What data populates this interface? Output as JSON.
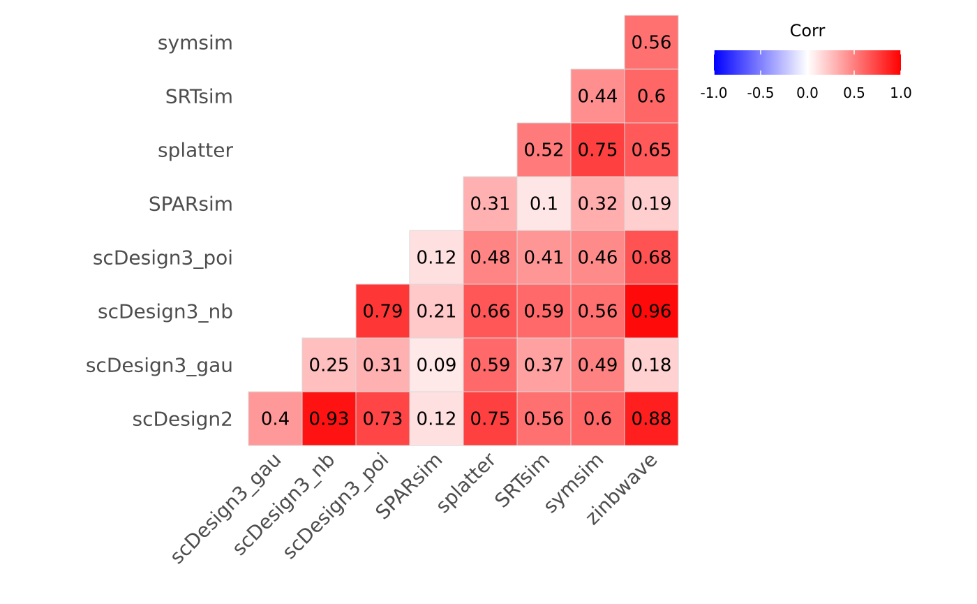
{
  "chart_data": {
    "type": "heatmap",
    "title": "",
    "xlabel": "",
    "ylabel": "",
    "columns": [
      "scDesign3_gau",
      "scDesign3_nb",
      "scDesign3_poi",
      "SPARsim",
      "splatter",
      "SRTsim",
      "symsim",
      "zinbwave"
    ],
    "rows": [
      "scDesign2",
      "scDesign3_gau",
      "scDesign3_nb",
      "scDesign3_poi",
      "SPARsim",
      "splatter",
      "SRTsim",
      "symsim"
    ],
    "cells": [
      {
        "row": "scDesign2",
        "col": "scDesign3_gau",
        "value": 0.4
      },
      {
        "row": "scDesign2",
        "col": "scDesign3_nb",
        "value": 0.93
      },
      {
        "row": "scDesign2",
        "col": "scDesign3_poi",
        "value": 0.73
      },
      {
        "row": "scDesign2",
        "col": "SPARsim",
        "value": 0.12
      },
      {
        "row": "scDesign2",
        "col": "splatter",
        "value": 0.75
      },
      {
        "row": "scDesign2",
        "col": "SRTsim",
        "value": 0.56
      },
      {
        "row": "scDesign2",
        "col": "symsim",
        "value": 0.6
      },
      {
        "row": "scDesign2",
        "col": "zinbwave",
        "value": 0.88
      },
      {
        "row": "scDesign3_gau",
        "col": "scDesign3_nb",
        "value": 0.25
      },
      {
        "row": "scDesign3_gau",
        "col": "scDesign3_poi",
        "value": 0.31
      },
      {
        "row": "scDesign3_gau",
        "col": "SPARsim",
        "value": 0.09
      },
      {
        "row": "scDesign3_gau",
        "col": "splatter",
        "value": 0.59
      },
      {
        "row": "scDesign3_gau",
        "col": "SRTsim",
        "value": 0.37
      },
      {
        "row": "scDesign3_gau",
        "col": "symsim",
        "value": 0.49
      },
      {
        "row": "scDesign3_gau",
        "col": "zinbwave",
        "value": 0.18
      },
      {
        "row": "scDesign3_nb",
        "col": "scDesign3_poi",
        "value": 0.79
      },
      {
        "row": "scDesign3_nb",
        "col": "SPARsim",
        "value": 0.21
      },
      {
        "row": "scDesign3_nb",
        "col": "splatter",
        "value": 0.66
      },
      {
        "row": "scDesign3_nb",
        "col": "SRTsim",
        "value": 0.59
      },
      {
        "row": "scDesign3_nb",
        "col": "symsim",
        "value": 0.56
      },
      {
        "row": "scDesign3_nb",
        "col": "zinbwave",
        "value": 0.96
      },
      {
        "row": "scDesign3_poi",
        "col": "SPARsim",
        "value": 0.12
      },
      {
        "row": "scDesign3_poi",
        "col": "splatter",
        "value": 0.48
      },
      {
        "row": "scDesign3_poi",
        "col": "SRTsim",
        "value": 0.41
      },
      {
        "row": "scDesign3_poi",
        "col": "symsim",
        "value": 0.46
      },
      {
        "row": "scDesign3_poi",
        "col": "zinbwave",
        "value": 0.68
      },
      {
        "row": "SPARsim",
        "col": "splatter",
        "value": 0.31
      },
      {
        "row": "SPARsim",
        "col": "SRTsim",
        "value": 0.1
      },
      {
        "row": "SPARsim",
        "col": "symsim",
        "value": 0.32
      },
      {
        "row": "SPARsim",
        "col": "zinbwave",
        "value": 0.19
      },
      {
        "row": "splatter",
        "col": "SRTsim",
        "value": 0.52
      },
      {
        "row": "splatter",
        "col": "symsim",
        "value": 0.75
      },
      {
        "row": "splatter",
        "col": "zinbwave",
        "value": 0.65
      },
      {
        "row": "SRTsim",
        "col": "symsim",
        "value": 0.44
      },
      {
        "row": "SRTsim",
        "col": "zinbwave",
        "value": 0.6
      },
      {
        "row": "symsim",
        "col": "zinbwave",
        "value": 0.56
      }
    ],
    "legend": {
      "title": "Corr",
      "ticks": [
        "-1.0",
        "-0.5",
        "0.0",
        "0.5",
        "1.0"
      ],
      "range": [
        -1,
        1
      ],
      "placement": "top-right",
      "low_color": "#0000ff",
      "mid_color": "#ffffff",
      "high_color": "#ff0000"
    },
    "grid": false
  }
}
